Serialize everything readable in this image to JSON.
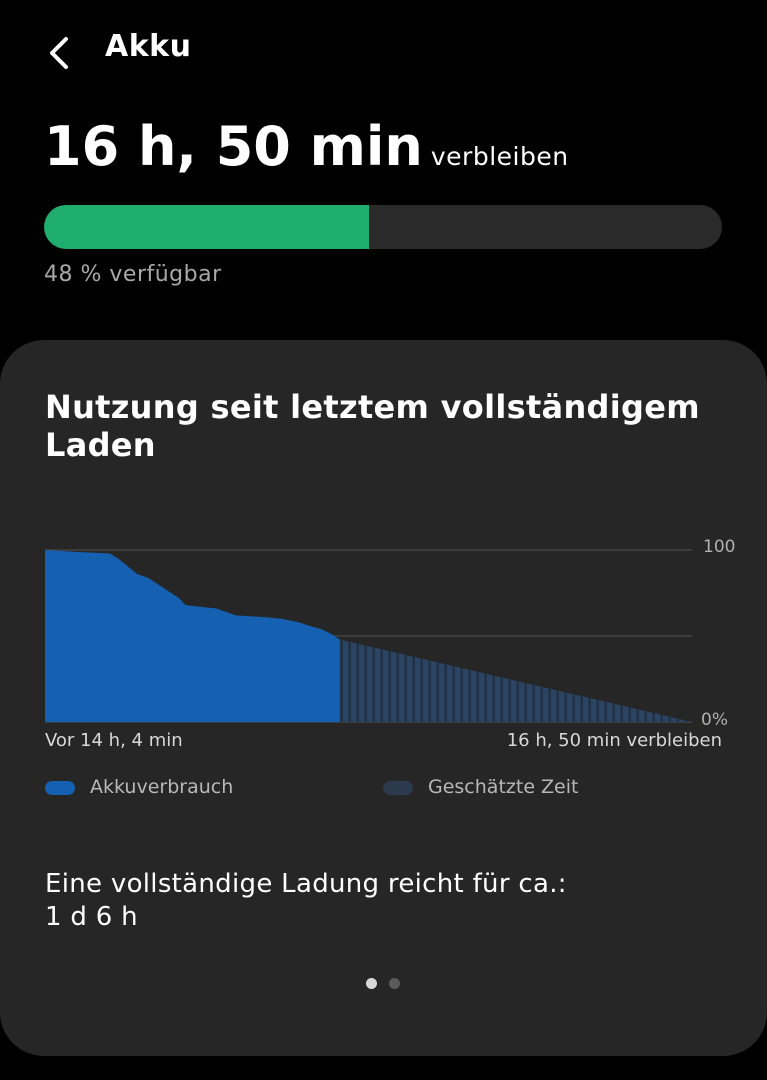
{
  "header": {
    "back_icon": "chevron-left-icon",
    "title": "Akku"
  },
  "battery": {
    "remaining_time": "16 h, 50 min",
    "remaining_suffix": "verbleiben",
    "level_percent": 48,
    "available_text": "48 % verfügbar",
    "fill_color": "#1fae6e"
  },
  "usage_card": {
    "title": "Nutzung seit letztem vollständigem Laden",
    "full_charge_label": "Eine vollständige Ladung reicht für ca.:",
    "full_charge_value": "1 d 6 h",
    "page_indicator": {
      "count": 2,
      "active": 0
    }
  },
  "chart_data": {
    "type": "area",
    "x_start_label": "Vor 14 h, 4 min",
    "x_end_label": "16 h, 50 min verbleiben",
    "y_ticks": [
      "100",
      "0%"
    ],
    "ylim": [
      0,
      100
    ],
    "grid": true,
    "series": [
      {
        "name": "Akkuverbrauch",
        "color": "#1560b0",
        "x_hours": [
          0,
          1.4,
          3.1,
          3.5,
          3.9,
          4.4,
          4.9,
          5.4,
          5.9,
          6.4,
          6.7,
          7.4,
          8.2,
          9.1,
          10.5,
          11.3,
          12.1,
          12.6,
          13.2,
          13.7,
          14.07
        ],
        "values": [
          100,
          99,
          98,
          95,
          91,
          86,
          84,
          80,
          76,
          72,
          68,
          67,
          66,
          62,
          61,
          60,
          58,
          56,
          54,
          51,
          48
        ]
      },
      {
        "name": "Geschätzte Zeit",
        "color": "#2b4461",
        "x_hours": [
          14.07,
          30.9
        ],
        "values": [
          48,
          0
        ]
      }
    ]
  }
}
